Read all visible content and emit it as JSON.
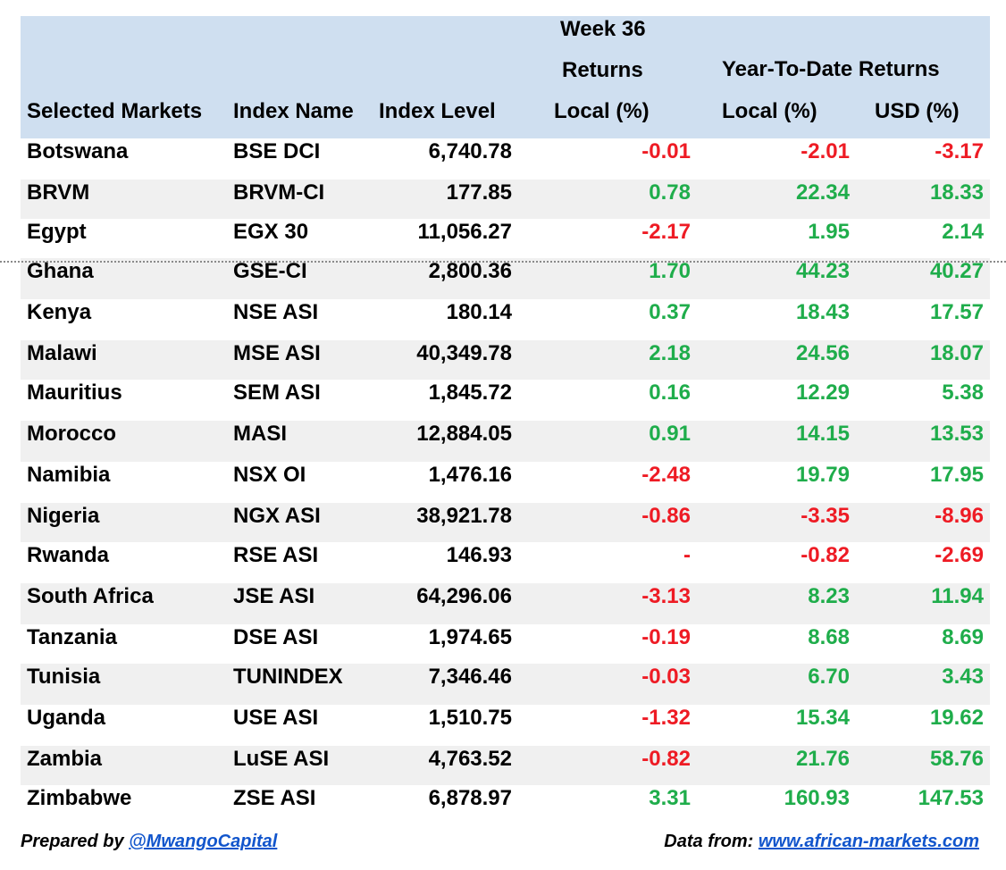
{
  "table": {
    "header": {
      "col_market": "Selected Markets",
      "col_index": "Index Name",
      "col_level": "Index Level",
      "week_group_line1": "Week 36",
      "week_group_line2": "Returns",
      "week_local": "Local (%)",
      "ytd_group": "Year-To-Date Returns",
      "ytd_local": "Local (%)",
      "ytd_usd": "USD (%)"
    },
    "rows": [
      {
        "market": "Botswana",
        "index": "BSE DCI",
        "level": "6,740.78",
        "week": "-0.01",
        "ytd_local": "-2.01",
        "ytd_usd": "-3.17"
      },
      {
        "market": "BRVM",
        "index": "BRVM-CI",
        "level": "177.85",
        "week": "0.78",
        "ytd_local": "22.34",
        "ytd_usd": "18.33"
      },
      {
        "market": "Egypt",
        "index": "EGX 30",
        "level": "11,056.27",
        "week": "-2.17",
        "ytd_local": "1.95",
        "ytd_usd": "2.14"
      },
      {
        "market": "Ghana",
        "index": "GSE-CI",
        "level": "2,800.36",
        "week": "1.70",
        "ytd_local": "44.23",
        "ytd_usd": "40.27"
      },
      {
        "market": "Kenya",
        "index": "NSE ASI",
        "level": "180.14",
        "week": "0.37",
        "ytd_local": "18.43",
        "ytd_usd": "17.57"
      },
      {
        "market": "Malawi",
        "index": "MSE ASI",
        "level": "40,349.78",
        "week": "2.18",
        "ytd_local": "24.56",
        "ytd_usd": "18.07"
      },
      {
        "market": "Mauritius",
        "index": "SEM ASI",
        "level": "1,845.72",
        "week": "0.16",
        "ytd_local": "12.29",
        "ytd_usd": "5.38"
      },
      {
        "market": "Morocco",
        "index": "MASI",
        "level": "12,884.05",
        "week": "0.91",
        "ytd_local": "14.15",
        "ytd_usd": "13.53"
      },
      {
        "market": "Namibia",
        "index": "NSX OI",
        "level": "1,476.16",
        "week": "-2.48",
        "ytd_local": "19.79",
        "ytd_usd": "17.95"
      },
      {
        "market": "Nigeria",
        "index": "NGX ASI",
        "level": "38,921.78",
        "week": "-0.86",
        "ytd_local": "-3.35",
        "ytd_usd": "-8.96"
      },
      {
        "market": "Rwanda",
        "index": "RSE ASI",
        "level": "146.93",
        "week": "-",
        "ytd_local": "-0.82",
        "ytd_usd": "-2.69"
      },
      {
        "market": "South Africa",
        "index": "JSE ASI",
        "level": "64,296.06",
        "week": "-3.13",
        "ytd_local": "8.23",
        "ytd_usd": "11.94"
      },
      {
        "market": "Tanzania",
        "index": "DSE ASI",
        "level": "1,974.65",
        "week": "-0.19",
        "ytd_local": "8.68",
        "ytd_usd": "8.69"
      },
      {
        "market": "Tunisia",
        "index": "TUNINDEX",
        "level": "7,346.46",
        "week": "-0.03",
        "ytd_local": "6.70",
        "ytd_usd": "3.43"
      },
      {
        "market": "Uganda",
        "index": "USE ASI",
        "level": "1,510.75",
        "week": "-1.32",
        "ytd_local": "15.34",
        "ytd_usd": "19.62"
      },
      {
        "market": "Zambia",
        "index": "LuSE ASI",
        "level": "4,763.52",
        "week": "-0.82",
        "ytd_local": "21.76",
        "ytd_usd": "58.76"
      },
      {
        "market": "Zimbabwe",
        "index": "ZSE ASI",
        "level": "6,878.97",
        "week": "3.31",
        "ytd_local": "160.93",
        "ytd_usd": "147.53"
      }
    ]
  },
  "footer": {
    "prepared_prefix": "Prepared by ",
    "prepared_handle": "@MwangoCapital",
    "data_prefix": "Data from: ",
    "data_link": "www.african-markets.com"
  },
  "colors": {
    "header_bg": "#cfdff0",
    "positive": "#1fad4b",
    "negative": "#ee1b24",
    "link": "#1155cc"
  }
}
